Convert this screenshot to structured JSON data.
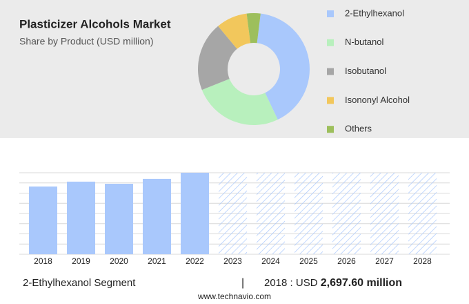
{
  "chart_data": [
    {
      "type": "pie",
      "title": "Plasticizer Alcohols Market",
      "subtitle": "Share by Product (USD million)",
      "categories": [
        "2-Ethylhexanol",
        "N-butanol",
        "Isobutanol",
        "Isononyl Alcohol",
        "Others"
      ],
      "values": [
        41,
        26,
        20,
        9,
        4
      ],
      "colors": [
        "#a9c8fc",
        "#b8f0bd",
        "#a6a6a6",
        "#f2c75c",
        "#9dbf5c"
      ],
      "donut": true,
      "legend": "right"
    },
    {
      "type": "bar",
      "categories": [
        "2018",
        "2019",
        "2020",
        "2021",
        "2022",
        "2023",
        "2024",
        "2025",
        "2026",
        "2027",
        "2028"
      ],
      "values": [
        2697.6,
        2890,
        2805,
        3000,
        3245,
        null,
        null,
        null,
        null,
        null,
        null
      ],
      "value_labels": [
        "2,697.60 million",
        null,
        null,
        null,
        null,
        null,
        null,
        null,
        null,
        null,
        null
      ],
      "color": "#a9c8fc",
      "forecast_color": "#a9c8fc"
    }
  ],
  "footer": {
    "segment": "2-Ethylhexanol Segment",
    "separator": "|",
    "year_label": "2018 : USD",
    "source": "www.technavio.com"
  }
}
